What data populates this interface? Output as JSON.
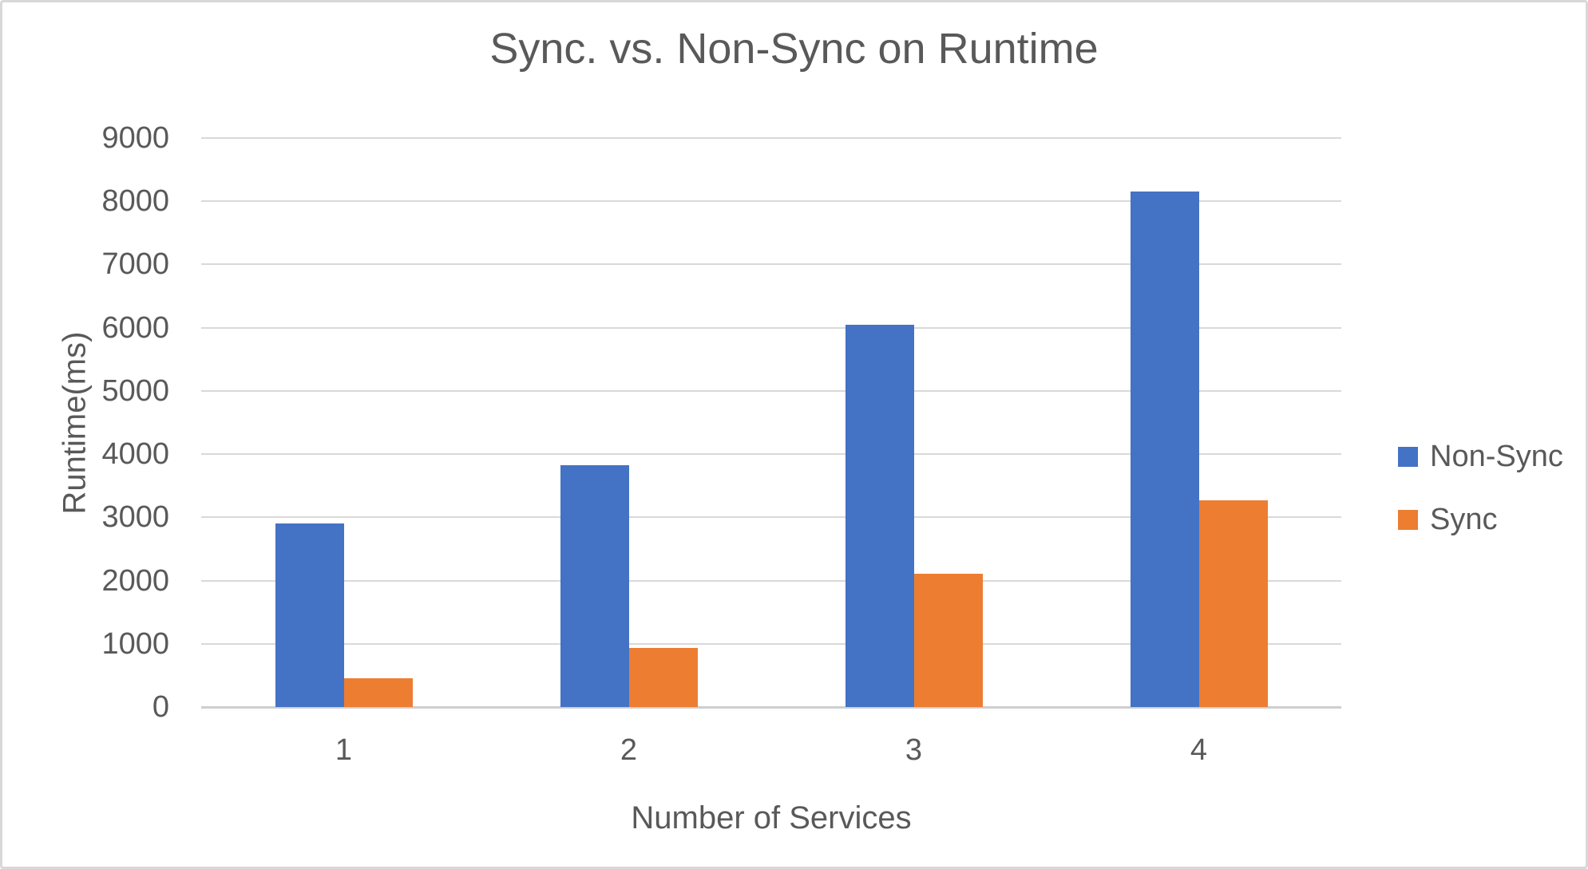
{
  "chart_data": {
    "type": "bar",
    "title": "Sync. vs. Non-Sync on Runtime",
    "xlabel": "Number of Services",
    "ylabel": "Runtime(ms)",
    "categories": [
      "1",
      "2",
      "3",
      "4"
    ],
    "series": [
      {
        "name": "Non-Sync",
        "color": "#4472C4",
        "values": [
          2900,
          3820,
          6040,
          8160
        ]
      },
      {
        "name": "Sync",
        "color": "#ED7D31",
        "values": [
          450,
          930,
          2110,
          3270
        ]
      }
    ],
    "ylim": [
      0,
      9000
    ],
    "yticks": [
      0,
      1000,
      2000,
      3000,
      4000,
      5000,
      6000,
      7000,
      8000,
      9000
    ],
    "grid": true,
    "legend_position": "right"
  },
  "colors": {
    "text": "#595959",
    "gridline": "#D9D9D9",
    "axis_line": "#CFCFCF",
    "non_sync_bar": "#4472C4",
    "sync_bar": "#ED7D31",
    "frame_border": "#D8D8D8",
    "background": "#FFFFFF"
  }
}
